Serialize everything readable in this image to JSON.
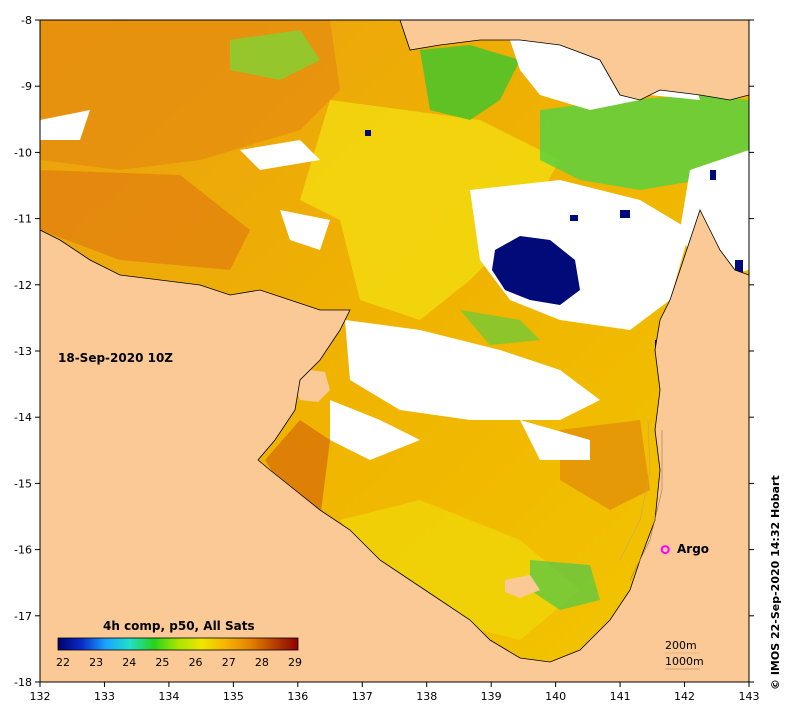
{
  "map": {
    "x_range": [
      132,
      143
    ],
    "y_range": [
      -18,
      -8
    ],
    "x_ticks": [
      "132",
      "133",
      "134",
      "135",
      "136",
      "137",
      "138",
      "139",
      "140",
      "141",
      "142",
      "143"
    ],
    "y_ticks": [
      "-8",
      "-9",
      "-10",
      "-11",
      "-12",
      "-13",
      "-14",
      "-15",
      "-16",
      "-17",
      "-18"
    ],
    "date_label": "18-Sep-2020 10Z",
    "credit": "© IMOS 22-Sep-2020 14:32 Hobart",
    "argo": {
      "label": "Argo",
      "lon": 141.7,
      "lat": -16.0
    },
    "depth_contours": [
      "200m",
      "1000m"
    ]
  },
  "legend": {
    "title": "4h comp, p50, All Sats",
    "ticks": [
      "22",
      "23",
      "24",
      "25",
      "26",
      "27",
      "28",
      "29"
    ],
    "stops": [
      "#00006e",
      "#0a2cc8",
      "#19a4ff",
      "#21e0c8",
      "#27d21e",
      "#a8e600",
      "#f0e600",
      "#f5b400",
      "#e58200",
      "#b84000",
      "#8c0000"
    ]
  },
  "colors": {
    "land": "#fbc996",
    "sea_warm": "#f0b400",
    "sea_orange": "#e88c10",
    "sea_yellow": "#f2dc10",
    "green": "#4fc830",
    "cloud": "#ffffff",
    "cold": "#000a78",
    "argo": "#ff00ff"
  }
}
